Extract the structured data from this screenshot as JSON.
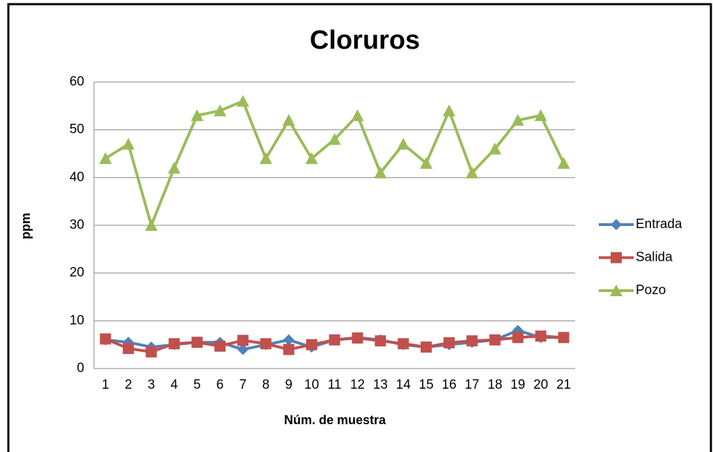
{
  "chart_data": {
    "type": "line",
    "title": "Cloruros",
    "x_label": "Núm. de muestra",
    "y_label": "ppm",
    "categories": [
      "1",
      "2",
      "3",
      "4",
      "5",
      "6",
      "7",
      "8",
      "9",
      "10",
      "11",
      "12",
      "13",
      "14",
      "15",
      "16",
      "17",
      "18",
      "19",
      "20",
      "21"
    ],
    "series": [
      {
        "name": "Entrada",
        "color": "#4f81bd",
        "marker": "diamond",
        "values": [
          6,
          5.5,
          4.5,
          5,
          5.5,
          5.5,
          4,
          5,
          6,
          4.5,
          6,
          6.5,
          6,
          5,
          4.5,
          5,
          5.5,
          6,
          8,
          6.5,
          6.5
        ]
      },
      {
        "name": "Salida",
        "color": "#c0504d",
        "marker": "square",
        "values": [
          6.2,
          4.2,
          3.5,
          5.2,
          5.5,
          4.7,
          5.9,
          5.2,
          4,
          5,
          6,
          6.4,
          5.8,
          5.2,
          4.5,
          5.4,
          5.8,
          6,
          6.5,
          6.8,
          6.5
        ]
      },
      {
        "name": "Pozo",
        "color": "#9bbb59",
        "marker": "triangle",
        "values": [
          44,
          47,
          30,
          42,
          53,
          54,
          56,
          44,
          52,
          44,
          48,
          53,
          41,
          47,
          43,
          54,
          41,
          46,
          52,
          53,
          43
        ]
      }
    ],
    "ylim": [
      0,
      60
    ],
    "yticks": [
      0,
      10,
      20,
      30,
      40,
      50,
      60
    ],
    "grid": true,
    "legend": "right"
  }
}
